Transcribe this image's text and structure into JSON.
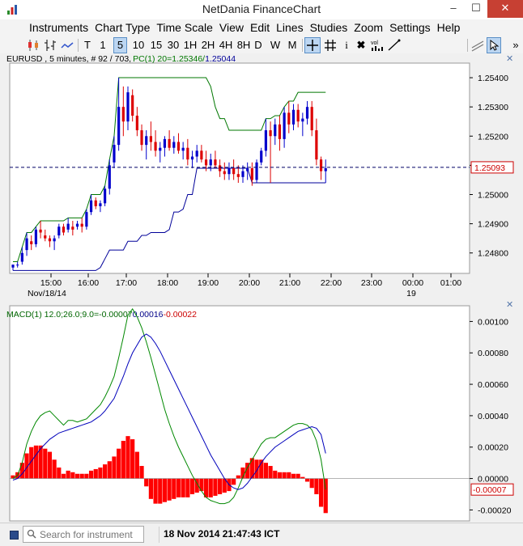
{
  "window": {
    "title": "NetDania FinanceChart"
  },
  "menu": [
    "Instruments",
    "Chart Type",
    "Time Scale",
    "View",
    "Edit",
    "Lines",
    "Studies",
    "Zoom",
    "Settings",
    "Help"
  ],
  "toolbar": {
    "timeframes": [
      "T",
      "1",
      "5",
      "10",
      "15",
      "30",
      "1H",
      "2H",
      "4H",
      "8H",
      "D",
      "W",
      "M"
    ],
    "selected_timeframe": "5",
    "tools": [
      "crosshair-icon",
      "grid-icon",
      "info-icon",
      "delete-icon",
      "volume-icon",
      "draw-line-icon",
      "select-arrow-icon"
    ],
    "volume_label": "vol",
    "overflow": "»"
  },
  "price_panel": {
    "header_symbol": "EURUSD , 5 minutes, # 92 / 703,",
    "header_study": "PC(1) 20=1.25346/",
    "header_study_value2": "1.25044",
    "current_price": "1.25093",
    "y_ticks": [
      "1.25400",
      "1.25300",
      "1.25200",
      "1.25100",
      "1.25000",
      "1.24900",
      "1.24800"
    ],
    "x_ticks": [
      "15:00",
      "16:00",
      "17:00",
      "18:00",
      "19:00",
      "20:00",
      "21:00",
      "22:00",
      "23:00",
      "00:00",
      "01:00"
    ],
    "date_labels": [
      "Nov/18/14",
      "19"
    ]
  },
  "macd_panel": {
    "header_name": "MACD(1) 12.0;26.0;9.0=",
    "header_value1": "-0.00007",
    "header_value2": "0.00016",
    "header_value3": "-0.00022",
    "current_value": "-0.00007",
    "y_ticks": [
      "0.00100",
      "0.00080",
      "0.00060",
      "0.00040",
      "0.00020",
      "0.00000",
      "-0.00020"
    ]
  },
  "colors": {
    "bull": "#0000cc",
    "bear": "#dd0000",
    "pc_upper": "#007700",
    "pc_lower": "#000099",
    "macd_line": "#008800",
    "signal_line": "#0000bb",
    "histogram": "#ff0000"
  },
  "chart_data": [
    {
      "type": "candlestick",
      "title": "",
      "instrument": "EURUSD",
      "interval": "5 minutes",
      "ylim": [
        1.2473,
        1.2545
      ],
      "candles": [
        [
          1.2475,
          1.2476,
          1.2474,
          1.2476
        ],
        [
          1.2476,
          1.2477,
          1.2475,
          1.2476
        ],
        [
          1.2477,
          1.2482,
          1.2476,
          1.248
        ],
        [
          1.2481,
          1.2487,
          1.2479,
          1.2485
        ],
        [
          1.2484,
          1.2486,
          1.2481,
          1.2483
        ],
        [
          1.2483,
          1.2489,
          1.2482,
          1.2488
        ],
        [
          1.2488,
          1.2491,
          1.2485,
          1.2487
        ],
        [
          1.2486,
          1.2488,
          1.2484,
          1.2485
        ],
        [
          1.2485,
          1.2486,
          1.2482,
          1.2484
        ],
        [
          1.2484,
          1.2486,
          1.2481,
          1.2485
        ],
        [
          1.2486,
          1.249,
          1.2485,
          1.2489
        ],
        [
          1.2489,
          1.249,
          1.2486,
          1.2487
        ],
        [
          1.2488,
          1.2492,
          1.2487,
          1.249
        ],
        [
          1.2489,
          1.2491,
          1.2486,
          1.2488
        ],
        [
          1.2489,
          1.2491,
          1.2488,
          1.249
        ],
        [
          1.249,
          1.2492,
          1.2487,
          1.2489
        ],
        [
          1.2489,
          1.2495,
          1.2488,
          1.2494
        ],
        [
          1.2494,
          1.25,
          1.2493,
          1.2498
        ],
        [
          1.2498,
          1.2499,
          1.2495,
          1.2496
        ],
        [
          1.2496,
          1.2498,
          1.2494,
          1.2497
        ],
        [
          1.2497,
          1.2503,
          1.2496,
          1.2502
        ],
        [
          1.2502,
          1.2512,
          1.25,
          1.251
        ],
        [
          1.2511,
          1.252,
          1.2509,
          1.2517
        ],
        [
          1.2517,
          1.254,
          1.2515,
          1.253
        ],
        [
          1.253,
          1.2537,
          1.252,
          1.2525
        ],
        [
          1.2525,
          1.2537,
          1.2522,
          1.2535
        ],
        [
          1.2534,
          1.2536,
          1.2525,
          1.2527
        ],
        [
          1.2527,
          1.253,
          1.252,
          1.2522
        ],
        [
          1.2522,
          1.2524,
          1.2515,
          1.2517
        ],
        [
          1.2517,
          1.2522,
          1.2512,
          1.252
        ],
        [
          1.252,
          1.2525,
          1.2515,
          1.2518
        ],
        [
          1.2518,
          1.2522,
          1.2513,
          1.2515
        ],
        [
          1.2515,
          1.2518,
          1.2511,
          1.2516
        ],
        [
          1.2516,
          1.252,
          1.2513,
          1.2519
        ],
        [
          1.2519,
          1.2522,
          1.2515,
          1.2516
        ],
        [
          1.2516,
          1.252,
          1.2514,
          1.2518
        ],
        [
          1.2518,
          1.2521,
          1.2514,
          1.2515
        ],
        [
          1.2515,
          1.2518,
          1.2512,
          1.2516
        ],
        [
          1.2516,
          1.2519,
          1.251,
          1.2512
        ],
        [
          1.2512,
          1.2515,
          1.2509,
          1.2513
        ],
        [
          1.2513,
          1.2517,
          1.2511,
          1.2515
        ],
        [
          1.2515,
          1.2517,
          1.2511,
          1.2512
        ],
        [
          1.2512,
          1.2515,
          1.2508,
          1.251
        ],
        [
          1.251,
          1.2514,
          1.2508,
          1.2512
        ],
        [
          1.2512,
          1.2515,
          1.2509,
          1.251
        ],
        [
          1.251,
          1.2512,
          1.2506,
          1.2508
        ],
        [
          1.2508,
          1.2511,
          1.2505,
          1.2507
        ],
        [
          1.2507,
          1.2511,
          1.2505,
          1.2509
        ],
        [
          1.2509,
          1.2512,
          1.2505,
          1.2507
        ],
        [
          1.2507,
          1.251,
          1.2504,
          1.2506
        ],
        [
          1.2506,
          1.251,
          1.2504,
          1.2508
        ],
        [
          1.2508,
          1.2511,
          1.2505,
          1.2509
        ],
        [
          1.2509,
          1.2511,
          1.2503,
          1.2505
        ],
        [
          1.2505,
          1.2512,
          1.2504,
          1.2511
        ],
        [
          1.2511,
          1.2516,
          1.251,
          1.2515
        ],
        [
          1.2515,
          1.2526,
          1.2513,
          1.2522
        ],
        [
          1.2522,
          1.2525,
          1.2504,
          1.252
        ],
        [
          1.252,
          1.2526,
          1.2517,
          1.2524
        ],
        [
          1.2524,
          1.2527,
          1.2515,
          1.2519
        ],
        [
          1.2519,
          1.253,
          1.2516,
          1.2528
        ],
        [
          1.2528,
          1.2532,
          1.2521,
          1.2524
        ],
        [
          1.2524,
          1.2531,
          1.2522,
          1.2529
        ],
        [
          1.2529,
          1.2531,
          1.2523,
          1.2525
        ],
        [
          1.2525,
          1.2528,
          1.252,
          1.2526
        ],
        [
          1.2526,
          1.2532,
          1.2524,
          1.253
        ],
        [
          1.253,
          1.2532,
          1.252,
          1.2522
        ],
        [
          1.2522,
          1.2526,
          1.251,
          1.2512
        ],
        [
          1.2512,
          1.2513,
          1.2505,
          1.2508
        ],
        [
          1.2508,
          1.2512,
          1.2504,
          1.2509
        ]
      ],
      "pc_upper": [
        1.2477,
        1.2477,
        1.2482,
        1.2487,
        1.2487,
        1.2489,
        1.2491,
        1.2491,
        1.2491,
        1.2491,
        1.2491,
        1.2491,
        1.2492,
        1.2492,
        1.2492,
        1.2492,
        1.2495,
        1.25,
        1.25,
        1.25,
        1.2503,
        1.2512,
        1.252,
        1.254,
        1.254,
        1.254,
        1.254,
        1.254,
        1.254,
        1.254,
        1.254,
        1.254,
        1.254,
        1.254,
        1.254,
        1.254,
        1.254,
        1.254,
        1.254,
        1.254,
        1.254,
        1.254,
        1.254,
        1.2537,
        1.253,
        1.2526,
        1.2526,
        1.2522,
        1.2522,
        1.2522,
        1.2522,
        1.2522,
        1.2522,
        1.2522,
        1.2522,
        1.2526,
        1.2526,
        1.2527,
        1.2527,
        1.253,
        1.2532,
        1.2532,
        1.2535,
        1.2535,
        1.2535,
        1.2535,
        1.2535,
        1.2535,
        1.2535
      ],
      "pc_lower": [
        1.2474,
        1.2474,
        1.2474,
        1.2474,
        1.2474,
        1.2474,
        1.2474,
        1.2474,
        1.2474,
        1.2474,
        1.2474,
        1.2474,
        1.2474,
        1.2474,
        1.2474,
        1.2474,
        1.2474,
        1.2474,
        1.2474,
        1.2475,
        1.2478,
        1.2481,
        1.2481,
        1.2481,
        1.2481,
        1.2484,
        1.2484,
        1.2484,
        1.2486,
        1.2486,
        1.2487,
        1.2487,
        1.2487,
        1.2487,
        1.2488,
        1.2494,
        1.2494,
        1.2495,
        1.25,
        1.25,
        1.2509,
        1.2509,
        1.2509,
        1.2509,
        1.2509,
        1.2509,
        1.2509,
        1.2509,
        1.2509,
        1.2509,
        1.2509,
        1.2509,
        1.2504,
        1.2504,
        1.2504,
        1.2504,
        1.2504,
        1.2504,
        1.2504,
        1.2504,
        1.2504,
        1.2504,
        1.2504,
        1.2504,
        1.2504,
        1.2504,
        1.2504,
        1.2504,
        1.2504
      ]
    },
    {
      "type": "line",
      "title": "",
      "ylim": [
        -0.00027,
        0.0011
      ],
      "series": [
        {
          "name": "MACD",
          "values": [
            0.0,
            2e-05,
            0.0001,
            0.00022,
            0.0003,
            0.00036,
            0.0004,
            0.00042,
            0.00043,
            0.0004,
            0.00037,
            0.00034,
            0.00037,
            0.00037,
            0.00036,
            0.00037,
            0.00038,
            0.00041,
            0.00044,
            0.00047,
            0.00052,
            0.00058,
            0.00065,
            0.00077,
            0.0009,
            0.00104,
            0.00108,
            0.00103,
            0.00096,
            0.00087,
            0.00077,
            0.00066,
            0.00055,
            0.00044,
            0.00035,
            0.00027,
            0.0002,
            0.00014,
            8e-05,
            2e-05,
            -3e-05,
            -8e-05,
            -0.00012,
            -0.00014,
            -0.00015,
            -0.00016,
            -0.00016,
            -0.00015,
            -0.00012,
            -6e-05,
            1e-05,
            7e-05,
            0.00012,
            0.00017,
            0.00022,
            0.00025,
            0.00026,
            0.00026,
            0.00028,
            0.0003,
            0.00032,
            0.00034,
            0.00035,
            0.00035,
            0.00034,
            0.00031,
            0.00024,
            0.00012,
            -7e-05
          ]
        },
        {
          "name": "Signal",
          "values": [
            -1e-05,
            0.0,
            3e-05,
            7e-05,
            0.00011,
            0.00015,
            0.00019,
            0.00022,
            0.00025,
            0.00027,
            0.00029,
            0.0003,
            0.00031,
            0.00032,
            0.00033,
            0.00034,
            0.00035,
            0.00036,
            0.00038,
            0.0004,
            0.00043,
            0.00047,
            0.00051,
            0.00058,
            0.00065,
            0.00073,
            0.0008,
            0.00085,
            0.0009,
            0.00092,
            0.0009,
            0.00086,
            0.00081,
            0.00075,
            0.00069,
            0.00063,
            0.00057,
            0.00051,
            0.00045,
            0.00039,
            0.00033,
            0.00027,
            0.00021,
            0.00015,
            0.0001,
            5e-05,
            0.0,
            -4e-05,
            -6e-05,
            -7e-05,
            -6e-05,
            -3e-05,
            1e-05,
            5e-05,
            0.0001,
            0.00014,
            0.00017,
            0.0002,
            0.00022,
            0.00024,
            0.00026,
            0.00028,
            0.0003,
            0.00031,
            0.00032,
            0.00033,
            0.00032,
            0.00028,
            0.00016
          ]
        }
      ],
      "histogram": [
        2e-05,
        4e-05,
        0.0001,
        0.00016,
        0.0002,
        0.00021,
        0.00021,
        0.00019,
        0.00017,
        0.00012,
        7e-05,
        3e-05,
        5e-05,
        4e-05,
        3e-05,
        3e-05,
        3e-05,
        5e-05,
        6e-05,
        7e-05,
        9e-05,
        0.00011,
        0.00014,
        0.00019,
        0.00024,
        0.00027,
        0.00025,
        0.00017,
        8e-05,
        -5e-05,
        -0.00013,
        -0.00016,
        -0.00016,
        -0.00015,
        -0.00014,
        -0.00013,
        -0.00012,
        -0.00012,
        -0.00012,
        -0.0001,
        -9e-05,
        -8e-05,
        -0.00012,
        -0.00012,
        -0.00011,
        -0.0001,
        -9e-05,
        -8e-05,
        -4e-05,
        2e-05,
        7e-05,
        0.0001,
        0.00013,
        0.00012,
        0.00012,
        0.0001,
        8e-05,
        5e-05,
        4e-05,
        4e-05,
        4e-05,
        3e-05,
        3e-05,
        1e-05,
        -2e-05,
        -6e-05,
        -0.0001,
        -0.00018,
        -0.00022
      ]
    }
  ]
}
